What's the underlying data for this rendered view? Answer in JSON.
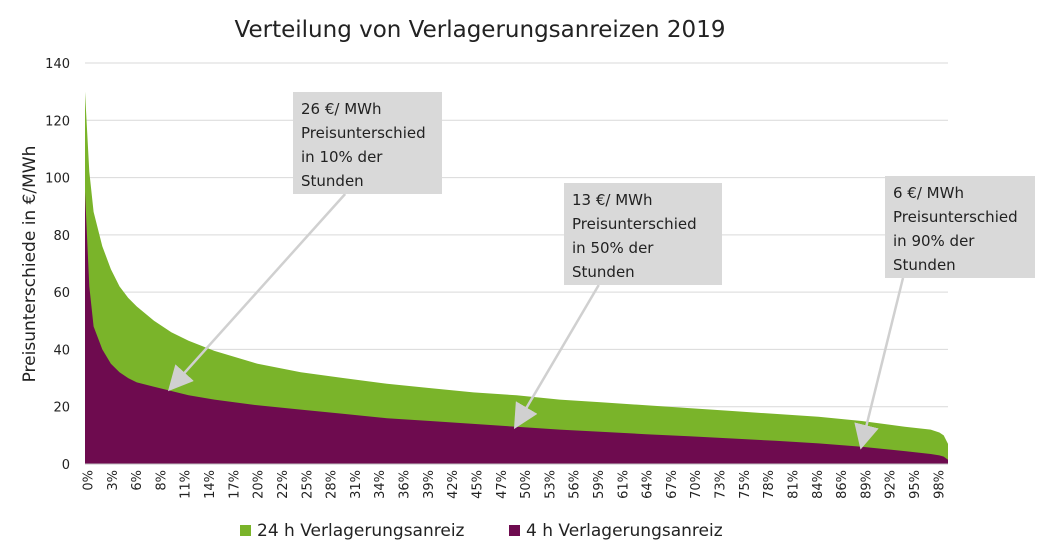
{
  "chart_data": {
    "type": "area",
    "title": "Verteilung von Verlagerungsanreizen 2019",
    "xlabel": "",
    "ylabel": "Preisunterschiede in €/MWh",
    "ylim": [
      0,
      140
    ],
    "yticks": [
      0,
      20,
      40,
      60,
      80,
      100,
      120,
      140
    ],
    "grid": true,
    "legend_position": "bottom",
    "x": [
      0,
      0.5,
      1,
      2,
      3,
      4,
      5,
      6,
      8,
      10,
      12,
      15,
      20,
      25,
      30,
      35,
      40,
      45,
      50,
      55,
      60,
      65,
      70,
      75,
      80,
      85,
      90,
      95,
      98,
      99,
      99.5,
      100
    ],
    "xtick_labels": [
      "0%",
      "3%",
      "6%",
      "8%",
      "11%",
      "14%",
      "17%",
      "20%",
      "22%",
      "25%",
      "28%",
      "31%",
      "34%",
      "36%",
      "39%",
      "42%",
      "45%",
      "47%",
      "50%",
      "53%",
      "56%",
      "59%",
      "61%",
      "64%",
      "67%",
      "70%",
      "73%",
      "75%",
      "78%",
      "81%",
      "84%",
      "86%",
      "89%",
      "92%",
      "95%",
      "98%"
    ],
    "series": [
      {
        "name": "24 h Verlagerungsanreiz",
        "color": "#7ab42a",
        "values": [
          130,
          102,
          88,
          76,
          68,
          62,
          58,
          55,
          50,
          46,
          43,
          39.5,
          35,
          32,
          30,
          28,
          26.5,
          25,
          24,
          22.5,
          21.5,
          20.5,
          19.5,
          18.5,
          17.5,
          16.5,
          15,
          13,
          12,
          11,
          10,
          7
        ]
      },
      {
        "name": "4 h Verlagerungsanreiz",
        "color": "#6e0b4f",
        "values": [
          95,
          62,
          48,
          40,
          35,
          32,
          30,
          28.5,
          27,
          25.5,
          24,
          22.5,
          20.5,
          19,
          17.5,
          16,
          15,
          14,
          13,
          12,
          11.2,
          10.4,
          9.7,
          8.9,
          8.1,
          7.2,
          6,
          4.5,
          3.5,
          3,
          2.6,
          1.5
        ]
      }
    ],
    "annotations": [
      {
        "lines": [
          "26 €/ MWh",
          "Preisunterschied",
          "in 10% der",
          "Stunden"
        ],
        "x": 10,
        "y": 26
      },
      {
        "lines": [
          "13 €/ MWh",
          "Preisunterschied",
          "in 50% der",
          "Stunden"
        ],
        "x": 50,
        "y": 13
      },
      {
        "lines": [
          "6 €/ MWh",
          "Preisunterschied",
          "in 90% der",
          "Stunden"
        ],
        "x": 90,
        "y": 6
      }
    ]
  }
}
